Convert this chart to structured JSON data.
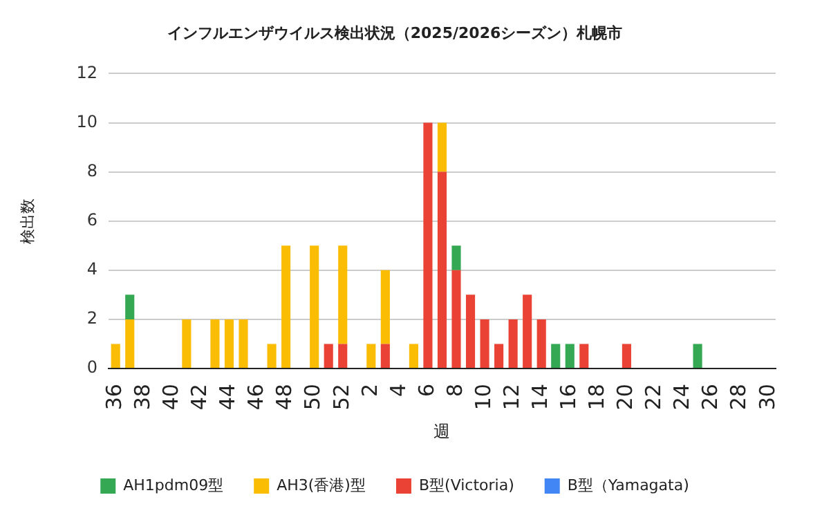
{
  "chart_data": {
    "type": "bar",
    "title": "インフルエンザウイルス検出状況（2025/2026シーズン）札幌市",
    "xlabel": "週",
    "ylabel": "検出数",
    "categories": [
      "36",
      null,
      "38",
      null,
      "40",
      null,
      "42",
      null,
      "44",
      null,
      "46",
      null,
      "48",
      null,
      "50",
      null,
      "52",
      null,
      "2",
      null,
      "4",
      null,
      "6",
      null,
      "8",
      null,
      "10",
      null,
      "12",
      null,
      "14",
      null,
      "16",
      null,
      "18",
      null,
      "20",
      null,
      "22",
      null,
      "24",
      null,
      "26",
      null,
      "28",
      null,
      "30"
    ],
    "stacked": true,
    "ylim": [
      0,
      12
    ],
    "yticks": [
      0,
      2,
      4,
      6,
      8,
      10,
      12
    ],
    "grid": "y",
    "legend": "bottom",
    "series": [
      {
        "name": "B型（Yamagata)",
        "color": "#4285f4",
        "values": [
          0,
          0,
          0,
          0,
          0,
          0,
          0,
          0,
          0,
          0,
          0,
          0,
          0,
          0,
          0,
          0,
          0,
          0,
          0,
          0,
          0,
          0,
          0,
          0,
          0,
          0,
          0,
          0,
          0,
          0,
          0,
          0,
          0,
          0,
          0,
          0,
          0,
          0,
          0,
          0,
          0,
          0,
          0,
          0,
          0,
          0,
          0
        ]
      },
      {
        "name": "B型(Victoria)",
        "color": "#ea4335",
        "values": [
          0,
          0,
          0,
          0,
          0,
          0,
          0,
          0,
          0,
          0,
          0,
          0,
          0,
          0,
          0,
          1,
          1,
          0,
          0,
          1,
          0,
          0,
          10,
          8,
          4,
          3,
          2,
          1,
          2,
          3,
          2,
          0,
          0,
          1,
          0,
          0,
          1,
          0,
          0,
          0,
          0,
          0,
          0,
          0,
          0,
          0,
          0
        ]
      },
      {
        "name": "AH3(香港)型",
        "color": "#fbbc04",
        "values": [
          1,
          2,
          0,
          0,
          0,
          2,
          0,
          2,
          2,
          2,
          0,
          1,
          5,
          0,
          5,
          0,
          4,
          0,
          1,
          3,
          0,
          1,
          0,
          2,
          0,
          0,
          0,
          0,
          0,
          0,
          0,
          0,
          0,
          0,
          0,
          0,
          0,
          0,
          0,
          0,
          0,
          0,
          0,
          0,
          0,
          0,
          0
        ]
      },
      {
        "name": "AH1pdm09型",
        "color": "#34a853",
        "values": [
          0,
          1,
          0,
          0,
          0,
          0,
          0,
          0,
          0,
          0,
          0,
          0,
          0,
          0,
          0,
          0,
          0,
          0,
          0,
          0,
          0,
          0,
          0,
          0,
          1,
          0,
          0,
          0,
          0,
          0,
          0,
          1,
          1,
          0,
          0,
          0,
          0,
          0,
          0,
          0,
          0,
          1,
          0,
          0,
          0,
          0,
          0
        ]
      }
    ]
  }
}
